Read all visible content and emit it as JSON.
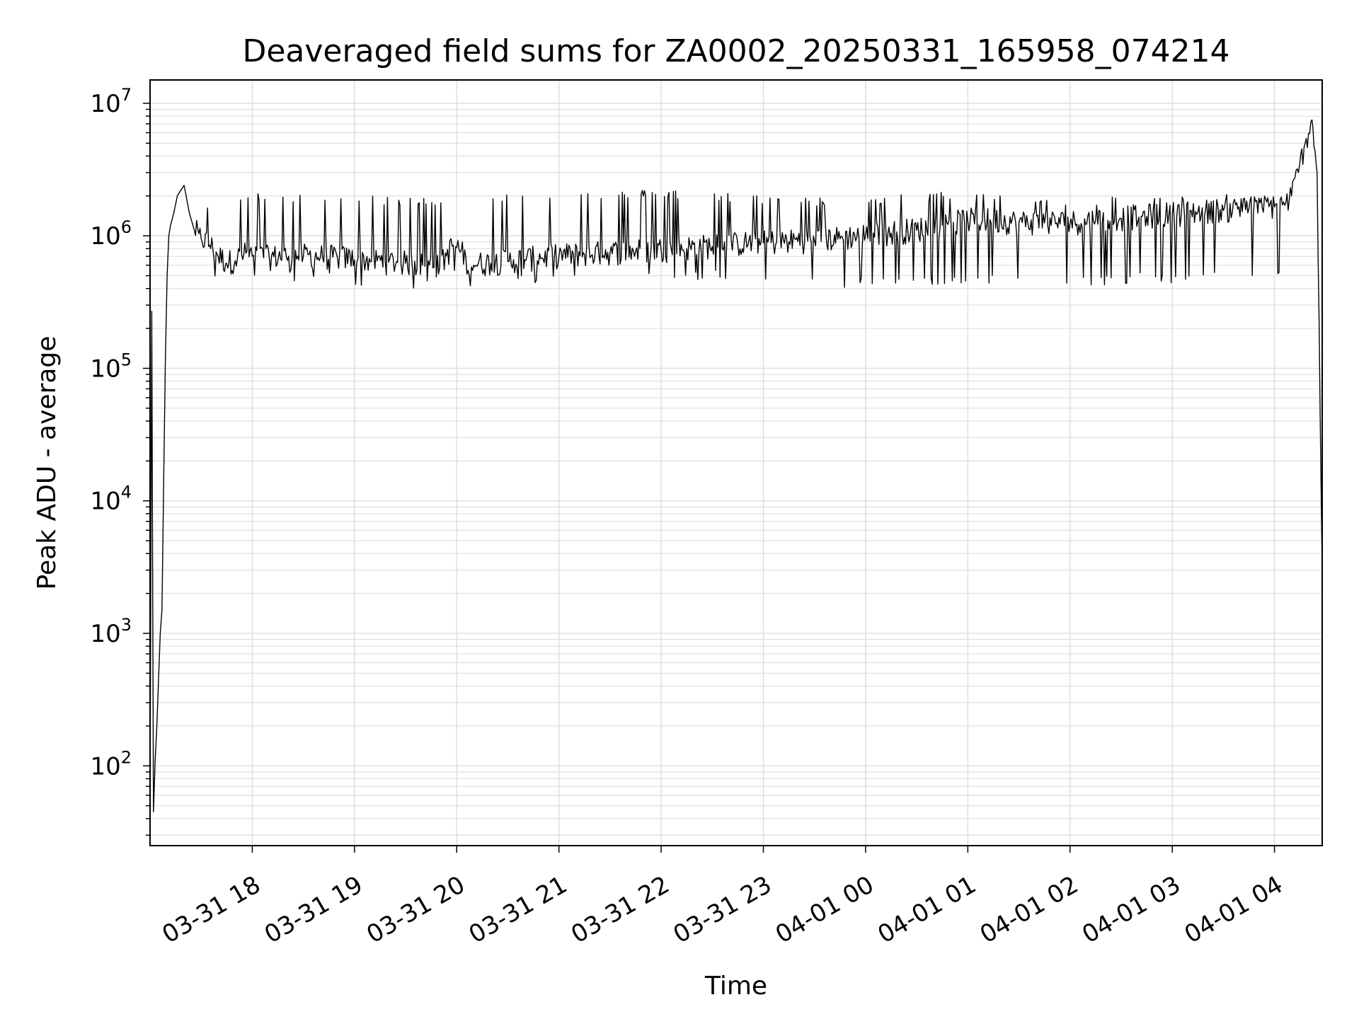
{
  "chart_data": {
    "type": "line",
    "title": "Deaveraged field sums for ZA0002_20250331_165958_074214",
    "xlabel": "Time",
    "ylabel": "Peak ADU - average",
    "y_scale": "log",
    "ylim": [
      25,
      15000000
    ],
    "xlim": [
      "2025-03-31 17:00",
      "2025-04-01 04:28"
    ],
    "grid": true,
    "line_color": "#000000",
    "grid_color": "#e0e0e0",
    "x_ticks": [
      {
        "value": "2025-03-31 18:00",
        "label": "03-31 18"
      },
      {
        "value": "2025-03-31 19:00",
        "label": "03-31 19"
      },
      {
        "value": "2025-03-31 20:00",
        "label": "03-31 20"
      },
      {
        "value": "2025-03-31 21:00",
        "label": "03-31 21"
      },
      {
        "value": "2025-03-31 22:00",
        "label": "03-31 22"
      },
      {
        "value": "2025-03-31 23:00",
        "label": "03-31 23"
      },
      {
        "value": "2025-04-01 00:00",
        "label": "04-01 00"
      },
      {
        "value": "2025-04-01 01:00",
        "label": "04-01 01"
      },
      {
        "value": "2025-04-01 02:00",
        "label": "04-01 02"
      },
      {
        "value": "2025-04-01 03:00",
        "label": "04-01 03"
      },
      {
        "value": "2025-04-01 04:00",
        "label": "04-01 04"
      }
    ],
    "y_ticks": [
      {
        "value": 100,
        "label": "10",
        "exp": "2"
      },
      {
        "value": 1000,
        "label": "10",
        "exp": "3"
      },
      {
        "value": 10000,
        "label": "10",
        "exp": "4"
      },
      {
        "value": 100000,
        "label": "10",
        "exp": "5"
      },
      {
        "value": 1000000,
        "label": "10",
        "exp": "6"
      },
      {
        "value": 10000000,
        "label": "10",
        "exp": "7"
      }
    ],
    "series": [
      {
        "x": [
          "2025-03-31 17:00",
          "2025-03-31 17:01",
          "2025-03-31 17:02",
          "2025-03-31 17:03",
          "2025-03-31 17:04",
          "2025-03-31 17:05",
          "2025-03-31 17:06",
          "2025-03-31 17:07",
          "2025-03-31 17:08",
          "2025-03-31 17:09",
          "2025-03-31 17:10",
          "2025-03-31 17:11",
          "2025-03-31 17:12",
          "2025-03-31 17:14",
          "2025-03-31 17:16",
          "2025-03-31 17:18",
          "2025-03-31 17:20",
          "2025-03-31 17:23",
          "2025-03-31 17:26",
          "2025-03-31 17:30",
          "2025-03-31 17:35",
          "2025-03-31 17:40",
          "2025-03-31 17:45",
          "2025-03-31 17:50",
          "2025-03-31 17:55",
          "2025-03-31 18:00",
          "2025-03-31 18:10",
          "2025-03-31 18:20",
          "2025-03-31 18:30",
          "2025-03-31 18:40",
          "2025-03-31 18:50",
          "2025-03-31 19:00",
          "2025-03-31 19:10",
          "2025-03-31 19:20",
          "2025-03-31 19:30",
          "2025-03-31 19:40",
          "2025-03-31 19:50",
          "2025-03-31 19:58",
          "2025-03-31 20:10",
          "2025-03-31 20:20",
          "2025-03-31 20:30",
          "2025-03-31 20:40",
          "2025-03-31 20:50",
          "2025-03-31 21:00",
          "2025-03-31 21:15",
          "2025-03-31 21:30",
          "2025-03-31 21:45",
          "2025-03-31 22:00",
          "2025-03-31 22:15",
          "2025-03-31 22:30",
          "2025-03-31 22:45",
          "2025-03-31 23:00",
          "2025-03-31 23:15",
          "2025-03-31 23:30",
          "2025-03-31 23:45",
          "2025-04-01 00:00",
          "2025-04-01 00:15",
          "2025-04-01 00:30",
          "2025-04-01 00:45",
          "2025-04-01 01:00",
          "2025-04-01 01:15",
          "2025-04-01 01:30",
          "2025-04-01 01:45",
          "2025-04-01 02:00",
          "2025-04-01 02:15",
          "2025-04-01 02:30",
          "2025-04-01 02:45",
          "2025-04-01 03:00",
          "2025-04-01 03:15",
          "2025-04-01 03:30",
          "2025-04-01 03:45",
          "2025-04-01 04:00",
          "2025-04-01 04:06",
          "2025-04-01 04:10",
          "2025-04-01 04:14",
          "2025-04-01 04:18",
          "2025-04-01 04:22",
          "2025-04-01 04:25",
          "2025-04-01 04:28"
        ],
        "y": [
          60,
          270000,
          45,
          110,
          200,
          450,
          1000,
          1500,
          15000,
          120000,
          500000,
          1000000,
          1200000,
          1500000,
          2000000,
          2200000,
          2400000,
          1500000,
          1100000,
          950000,
          850000,
          700000,
          620000,
          650000,
          720000,
          700000,
          680000,
          690000,
          700000,
          690000,
          680000,
          660000,
          640000,
          630000,
          620000,
          600000,
          580000,
          850000,
          600000,
          620000,
          640000,
          660000,
          680000,
          700000,
          720000,
          740000,
          760000,
          780000,
          800000,
          830000,
          860000,
          880000,
          900000,
          920000,
          950000,
          1000000,
          1050000,
          1100000,
          1200000,
          1300000,
          1300000,
          1250000,
          1250000,
          1250000,
          1300000,
          1350000,
          1400000,
          1450000,
          1500000,
          1550000,
          1600000,
          1650000,
          1700000,
          2000000,
          3000000,
          5000000,
          7500000,
          3000000,
          3000
        ],
        "band_low": [
          60,
          270000,
          45,
          110,
          200,
          450,
          1000,
          1500,
          15000,
          120000,
          500000,
          1000000,
          1200000,
          1500000,
          2000000,
          2200000,
          2400000,
          1500000,
          1100000,
          900000,
          650000,
          450000,
          400000,
          420000,
          450000,
          500000,
          480000,
          490000,
          500000,
          490000,
          480000,
          470000,
          460000,
          450000,
          440000,
          440000,
          440000,
          550000,
          450000,
          460000,
          470000,
          470000,
          480000,
          480000,
          490000,
          500000,
          500000,
          500000,
          510000,
          520000,
          520000,
          460000,
          450000,
          440000,
          440000,
          450000,
          460000,
          470000,
          480000,
          490000,
          470000,
          460000,
          460000,
          460000,
          460000,
          470000,
          480000,
          480000,
          480000,
          500000,
          520000,
          540000,
          560000,
          900000,
          1500000,
          1500000,
          1500000,
          1500000,
          3000
        ],
        "band_high": [
          60,
          270000,
          45,
          110,
          200,
          450,
          1000,
          1500,
          15000,
          120000,
          500000,
          1000000,
          1200000,
          1500000,
          2000000,
          2200000,
          2400000,
          1500000,
          1150000,
          1400000,
          1900000,
          2100000,
          2050000,
          2000000,
          2000000,
          2100000,
          2100000,
          2100000,
          2050000,
          2050000,
          2000000,
          2050000,
          2000000,
          1950000,
          1950000,
          2000000,
          2000000,
          2100000,
          2100000,
          2100000,
          2100000,
          2100000,
          2100000,
          2200000,
          2200000,
          2200000,
          2200000,
          2300000,
          2200000,
          2150000,
          2100000,
          2050000,
          2000000,
          1950000,
          1950000,
          2000000,
          2050000,
          2100000,
          2150000,
          2200000,
          2150000,
          2050000,
          2000000,
          2000000,
          2000000,
          2000000,
          2000000,
          2000000,
          2000000,
          2050000,
          2050000,
          2050000,
          2050000,
          2500000,
          3500000,
          5000000,
          8000000,
          3000000,
          3000
        ]
      }
    ]
  }
}
